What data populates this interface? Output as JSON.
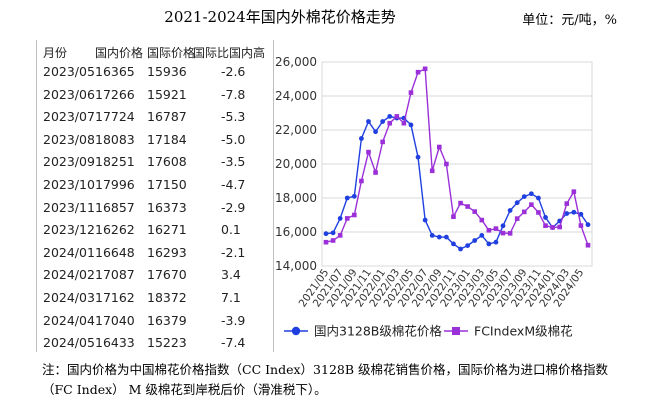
{
  "title": "2021-2024年国内外棉花价格走势",
  "unit": "单位：元/吨，%",
  "table": {
    "headers": [
      "月份",
      "国内价格",
      "国际价格",
      "国际比国内高"
    ],
    "rows": [
      [
        "2023/05",
        "16365",
        "15936",
        "-2.6"
      ],
      [
        "2023/06",
        "17266",
        "15921",
        "-7.8"
      ],
      [
        "2023/07",
        "17724",
        "16787",
        "-5.3"
      ],
      [
        "2023/08",
        "18083",
        "17184",
        "-5.0"
      ],
      [
        "2023/09",
        "18251",
        "17608",
        "-3.5"
      ],
      [
        "2023/10",
        "17996",
        "17150",
        "-4.7"
      ],
      [
        "2023/11",
        "16857",
        "16373",
        "-2.9"
      ],
      [
        "2023/12",
        "16262",
        "16271",
        "0.1"
      ],
      [
        "2024/01",
        "16648",
        "16293",
        "-2.1"
      ],
      [
        "2024/02",
        "17087",
        "17670",
        "3.4"
      ],
      [
        "2024/03",
        "17162",
        "18372",
        "7.1"
      ],
      [
        "2024/04",
        "17040",
        "16379",
        "-3.9"
      ],
      [
        "2024/05",
        "16433",
        "15223",
        "-7.4"
      ]
    ]
  },
  "note": "注：国内价格为中国棉花价格指数（CC Index）3128B 级棉花销售价格，国际价格为进口棉价格指数（FC Index） M 级棉花到岸税后价（滑准税下）。",
  "chart_data": {
    "type": "line",
    "y_ticks": [
      "14,000",
      "16,000",
      "18,000",
      "20,000",
      "22,000",
      "24,000",
      "26,000"
    ],
    "x_ticks": [
      "2021/05",
      "2021/07",
      "2021/09",
      "2021/11",
      "2022/01",
      "2022/03",
      "2022/05",
      "2022/07",
      "2022/09",
      "2022/11",
      "2023/01",
      "2023/03",
      "2023/05",
      "2023/07",
      "2023/09",
      "2023/11",
      "2024/01",
      "2024/03",
      "2024/05"
    ],
    "ylim": [
      14000,
      26000
    ],
    "grid": true,
    "legend_position": "bottom",
    "series": [
      {
        "name": "国内3128B级棉花价格",
        "color": "#1f3fe0",
        "marker": "circle",
        "values": [
          15900,
          15950,
          16800,
          18000,
          18100,
          21500,
          22500,
          21900,
          22500,
          22800,
          22700,
          22700,
          22300,
          20400,
          16700,
          15800,
          15700,
          15700,
          15300,
          15000,
          15200,
          15500,
          15800,
          15300,
          15400,
          16365,
          17266,
          17724,
          18083,
          18251,
          17996,
          16857,
          16262,
          16648,
          17087,
          17162,
          17040,
          16433
        ]
      },
      {
        "name": "FCIndexM级棉花",
        "color": "#9b30d8",
        "marker": "square",
        "values": [
          15400,
          15500,
          15800,
          16800,
          17000,
          19000,
          20700,
          19500,
          21300,
          22400,
          22800,
          22400,
          24200,
          25400,
          25600,
          19600,
          21000,
          20000,
          16900,
          17700,
          17500,
          17200,
          16700,
          16100,
          16200,
          15936,
          15921,
          16787,
          17184,
          17608,
          17150,
          16373,
          16271,
          16293,
          17670,
          18372,
          16379,
          15223
        ]
      }
    ]
  }
}
